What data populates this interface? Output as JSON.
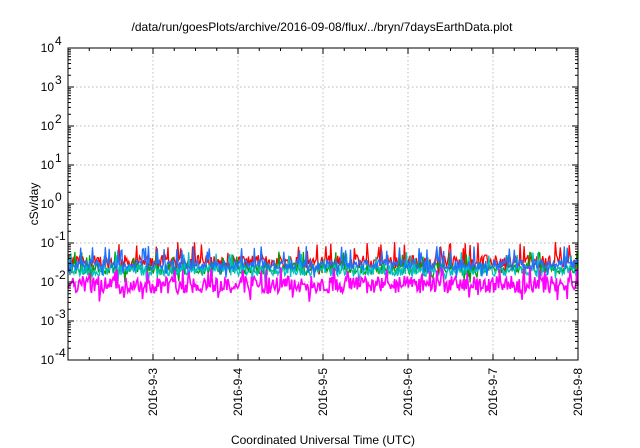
{
  "chart_data": {
    "type": "line",
    "title": "/data/run/goesPlots/archive/2016-09-08/flux/../bryn/7daysEarthData.plot",
    "xlabel": "Coordinated Universal Time (UTC)",
    "ylabel": "cSv/day",
    "yscale": "log",
    "ylim": [
      0.0001,
      10000
    ],
    "xlim": [
      2016.9021,
      2016.908
    ],
    "xticks": [
      {
        "label": "2016-9-3",
        "x": 3
      },
      {
        "label": "2016-9-4",
        "x": 4
      },
      {
        "label": "2016-9-5",
        "x": 5
      },
      {
        "label": "2016-9-6",
        "x": 6
      },
      {
        "label": "2016-9-7",
        "x": 7
      },
      {
        "label": "2016-9-8",
        "x": 8
      }
    ],
    "x_day_range": [
      2,
      8
    ],
    "yticks": [
      {
        "base": "10",
        "exp": "-4",
        "value": 0.0001
      },
      {
        "base": "10",
        "exp": "-3",
        "value": 0.001
      },
      {
        "base": "10",
        "exp": "-2",
        "value": 0.01
      },
      {
        "base": "10",
        "exp": "-1",
        "value": 0.1
      },
      {
        "base": "10",
        "exp": "0",
        "value": 1
      },
      {
        "base": "10",
        "exp": "1",
        "value": 10
      },
      {
        "base": "10",
        "exp": "2",
        "value": 100
      },
      {
        "base": "10",
        "exp": "3",
        "value": 1000
      },
      {
        "base": "10",
        "exp": "4",
        "value": 10000
      }
    ],
    "grid": true,
    "series": [
      {
        "color": "#ff0000",
        "base": 0.033,
        "spread": 0.35,
        "spike": 0.09
      },
      {
        "color": "#00a000",
        "base": 0.022,
        "spread": 0.3,
        "spike": 0.05
      },
      {
        "color": "#00c0c0",
        "base": 0.02,
        "spread": 0.3,
        "spike": 0.05
      },
      {
        "color": "#2070ff",
        "base": 0.028,
        "spread": 0.25,
        "spike": 0.07
      },
      {
        "color": "#ff00ff",
        "base": 0.0085,
        "spread": 0.45,
        "spike": 0.02
      }
    ]
  }
}
